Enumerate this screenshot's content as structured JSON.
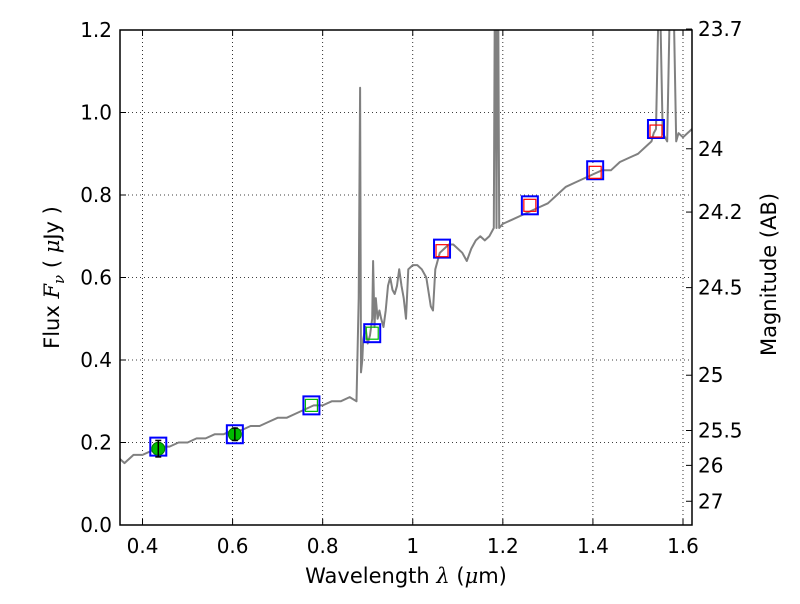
{
  "chart_data": {
    "type": "line",
    "xlabel": "Wavelength  λ (μm)",
    "xlabel_parts": {
      "pre": "Wavelength  ",
      "lambda": "λ",
      "mid": " (",
      "mu": "μ",
      "post": "m)"
    },
    "ylabel_parts": {
      "flux": "Flux  ",
      "F": "F",
      "nu": "ν",
      "open": "  ( ",
      "mu": "μ",
      "close": "Jy )"
    },
    "ylabel": "Flux  Fν  ( μJy )",
    "ylabel_right": "Magnitude (AB)",
    "xlim": [
      0.35,
      1.62
    ],
    "ylim": [
      0.0,
      1.2
    ],
    "x_ticks": [
      0.4,
      0.6,
      0.8,
      1.0,
      1.2,
      1.4,
      1.6
    ],
    "x_tick_labels": [
      "0.4",
      "0.6",
      "0.8",
      "1",
      "1.2",
      "1.4",
      "1.6"
    ],
    "y_ticks": [
      0.0,
      0.2,
      0.4,
      0.6,
      0.8,
      1.0,
      1.2
    ],
    "y_tick_labels": [
      "0.0",
      "0.2",
      "0.4",
      "0.6",
      "0.8",
      "1.0",
      "1.2"
    ],
    "right_ticks": [
      {
        "label": "23.7",
        "mag": 23.7
      },
      {
        "label": "24",
        "mag": 24.0
      },
      {
        "label": "24.2",
        "mag": 24.2
      },
      {
        "label": "24.5",
        "mag": 24.5
      },
      {
        "label": "25",
        "mag": 25.0
      },
      {
        "label": "25.5",
        "mag": 25.5
      },
      {
        "label": "26",
        "mag": 26.0
      },
      {
        "label": "27",
        "mag": 27.0
      }
    ],
    "grid": true,
    "series": [
      {
        "kind": "spectrum",
        "color": "#808080",
        "x": [
          0.35,
          0.36,
          0.37,
          0.38,
          0.4,
          0.42,
          0.44,
          0.46,
          0.48,
          0.5,
          0.52,
          0.54,
          0.56,
          0.58,
          0.6,
          0.62,
          0.64,
          0.66,
          0.68,
          0.7,
          0.72,
          0.74,
          0.76,
          0.78,
          0.8,
          0.82,
          0.84,
          0.86,
          0.875,
          0.88,
          0.883,
          0.885,
          0.888,
          0.89,
          0.895,
          0.9,
          0.905,
          0.91,
          0.912,
          0.915,
          0.918,
          0.922,
          0.926,
          0.93,
          0.935,
          0.94,
          0.945,
          0.95,
          0.955,
          0.96,
          0.965,
          0.97,
          0.975,
          0.98,
          0.985,
          0.99,
          1.0,
          1.01,
          1.02,
          1.03,
          1.04,
          1.045,
          1.05,
          1.06,
          1.07,
          1.08,
          1.09,
          1.1,
          1.11,
          1.12,
          1.13,
          1.14,
          1.15,
          1.16,
          1.17,
          1.18,
          1.182,
          1.184,
          1.186,
          1.188,
          1.19,
          1.192,
          1.2,
          1.22,
          1.24,
          1.26,
          1.28,
          1.3,
          1.32,
          1.34,
          1.36,
          1.38,
          1.4,
          1.42,
          1.44,
          1.46,
          1.48,
          1.5,
          1.52,
          1.53,
          1.535,
          1.54,
          1.545,
          1.55,
          1.555,
          1.56,
          1.565,
          1.57,
          1.575,
          1.58,
          1.585,
          1.59,
          1.6,
          1.61,
          1.62
        ],
        "y": [
          0.16,
          0.15,
          0.16,
          0.17,
          0.17,
          0.18,
          0.19,
          0.19,
          0.2,
          0.2,
          0.21,
          0.21,
          0.22,
          0.22,
          0.23,
          0.23,
          0.24,
          0.24,
          0.25,
          0.26,
          0.26,
          0.27,
          0.28,
          0.29,
          0.29,
          0.3,
          0.3,
          0.31,
          0.3,
          0.55,
          1.06,
          0.37,
          0.4,
          0.45,
          0.48,
          0.44,
          0.46,
          0.5,
          0.64,
          0.48,
          0.55,
          0.5,
          0.52,
          0.5,
          0.48,
          0.52,
          0.58,
          0.6,
          0.57,
          0.56,
          0.58,
          0.62,
          0.58,
          0.55,
          0.5,
          0.62,
          0.63,
          0.63,
          0.62,
          0.6,
          0.53,
          0.52,
          0.62,
          0.66,
          0.67,
          0.68,
          0.68,
          0.67,
          0.66,
          0.64,
          0.67,
          0.69,
          0.7,
          0.69,
          0.7,
          0.72,
          1.22,
          1.22,
          0.72,
          1.22,
          1.22,
          0.72,
          0.73,
          0.74,
          0.75,
          0.76,
          0.77,
          0.78,
          0.8,
          0.82,
          0.83,
          0.84,
          0.85,
          0.86,
          0.86,
          0.88,
          0.89,
          0.9,
          0.92,
          0.93,
          0.95,
          0.96,
          1.22,
          1.22,
          0.95,
          0.94,
          0.93,
          1.22,
          1.22,
          1.22,
          0.93,
          0.95,
          0.94,
          0.95,
          0.96
        ],
        "width": 2
      },
      {
        "kind": "model_photometry",
        "marker": "open-square",
        "color": "#0000ff",
        "x": [
          0.435,
          0.605,
          0.775,
          0.91,
          1.065,
          1.26,
          1.405,
          1.54
        ],
        "y": [
          0.19,
          0.22,
          0.29,
          0.465,
          0.67,
          0.775,
          0.86,
          0.96
        ]
      },
      {
        "kind": "observed_detection",
        "marker": "filled-circle",
        "color": "#00bb00",
        "x": [
          0.435,
          0.605
        ],
        "y": [
          0.185,
          0.22
        ],
        "yerr": [
          0.02,
          0.015
        ]
      },
      {
        "kind": "observed_open",
        "marker": "open-square-small",
        "color": "#00bb00",
        "x": [
          0.775,
          0.91
        ],
        "y": [
          0.29,
          0.465
        ]
      },
      {
        "kind": "observed_open",
        "marker": "open-square-small",
        "color": "#ff0000",
        "x": [
          1.065,
          1.26,
          1.405,
          1.54
        ],
        "y": [
          0.665,
          0.775,
          0.855,
          0.955
        ]
      }
    ]
  }
}
